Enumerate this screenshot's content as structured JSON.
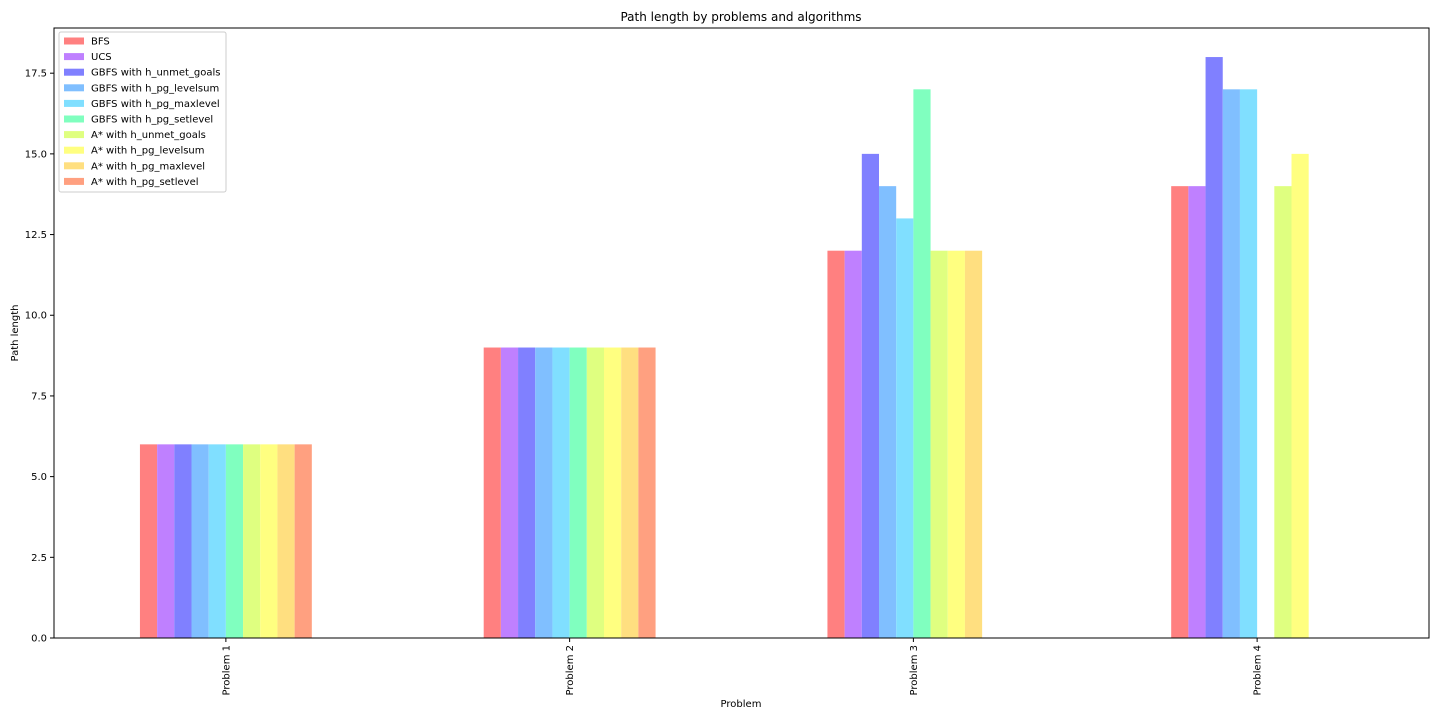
{
  "chart_data": {
    "type": "bar",
    "title": "Path length by problems and algorithms",
    "xlabel": "Problem",
    "ylabel": "Path length",
    "categories": [
      "Problem 1",
      "Problem 2",
      "Problem 3",
      "Problem 4"
    ],
    "ylim": [
      0,
      18.9
    ],
    "yticks": [
      "0.0",
      "2.5",
      "5.0",
      "7.5",
      "10.0",
      "12.5",
      "15.0",
      "17.5"
    ],
    "grid": false,
    "legend_position": "top-left",
    "series": [
      {
        "name": "BFS",
        "color": "#ff8080",
        "values": [
          6,
          9,
          12,
          14
        ]
      },
      {
        "name": "UCS",
        "color": "#bf80ff",
        "values": [
          6,
          9,
          12,
          14
        ]
      },
      {
        "name": "GBFS with h_unmet_goals",
        "color": "#8080ff",
        "values": [
          6,
          9,
          15,
          18
        ]
      },
      {
        "name": "GBFS with h_pg_levelsum",
        "color": "#80bfff",
        "values": [
          6,
          9,
          14,
          17
        ]
      },
      {
        "name": "GBFS with h_pg_maxlevel",
        "color": "#80dfff",
        "values": [
          6,
          9,
          13,
          17
        ]
      },
      {
        "name": "GBFS with h_pg_setlevel",
        "color": "#80ffbf",
        "values": [
          6,
          9,
          17,
          null
        ]
      },
      {
        "name": "A* with h_unmet_goals",
        "color": "#dfff80",
        "values": [
          6,
          9,
          12,
          14
        ]
      },
      {
        "name": "A* with h_pg_levelsum",
        "color": "#ffff80",
        "values": [
          6,
          9,
          12,
          15
        ]
      },
      {
        "name": "A* with h_pg_maxlevel",
        "color": "#ffdf80",
        "values": [
          6,
          9,
          12,
          null
        ]
      },
      {
        "name": "A* with h_pg_setlevel",
        "color": "#ffa080",
        "values": [
          6,
          9,
          null,
          null
        ]
      }
    ]
  }
}
